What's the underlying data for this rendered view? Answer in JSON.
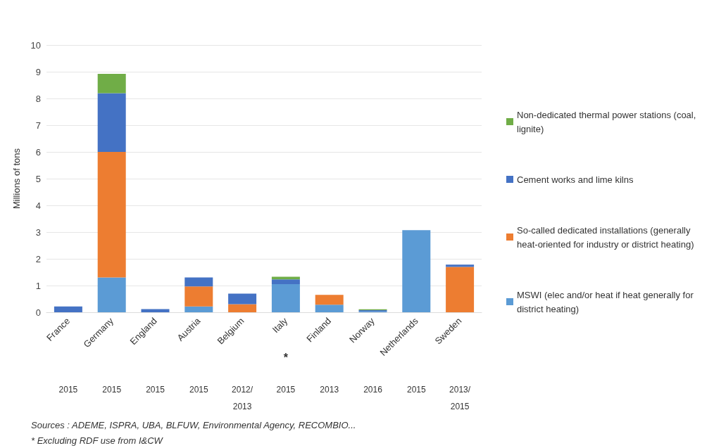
{
  "chart_data": {
    "type": "bar",
    "stacked": true,
    "ylabel": "Millions of tons",
    "categories": [
      "France",
      "Germany",
      "England",
      "Austria",
      "Belgium",
      "Italy",
      "Finland",
      "Norway",
      "Netherlands",
      "Sweden"
    ],
    "series": [
      {
        "name": "MSWI (elec and/or heat if heat generally for district heating)",
        "color": "#5b9bd5",
        "values": [
          0,
          1.3,
          0,
          0.22,
          0,
          1.05,
          0.28,
          0.03,
          3.07,
          0
        ]
      },
      {
        "name": "So-called dedicated installations (generally heat-oriented for industry or district heating)",
        "color": "#ed7d31",
        "values": [
          0,
          4.7,
          0,
          0.75,
          0.3,
          0,
          0.37,
          0,
          0,
          1.7
        ]
      },
      {
        "name": "Cement works and lime kilns",
        "color": "#4472c4",
        "values": [
          0.22,
          2.2,
          0.12,
          0.33,
          0.4,
          0.18,
          0,
          0.05,
          0,
          0.08
        ]
      },
      {
        "name": "Non-dedicated thermal power stations (coal, lignite)",
        "color": "#70ad47",
        "values": [
          0,
          0.72,
          0,
          0,
          0,
          0.1,
          0,
          0.03,
          0,
          0
        ]
      }
    ],
    "ylim": [
      0,
      10
    ],
    "yticks": [
      0,
      1,
      2,
      3,
      4,
      5,
      6,
      7,
      8,
      9,
      10
    ],
    "grid": "y",
    "legend": "right",
    "annotations": [
      "2015",
      "2015",
      "2015",
      "2015",
      "2012/\n2013",
      "2015",
      "2013",
      "2016",
      "2015",
      "2013/\n2015",
      "*",
      "Sources : ADEME, ISPRA, UBA, BLFUW, Environmental Agency, RECOMBIO...",
      "* Excluding RDF use from I&CW"
    ]
  }
}
